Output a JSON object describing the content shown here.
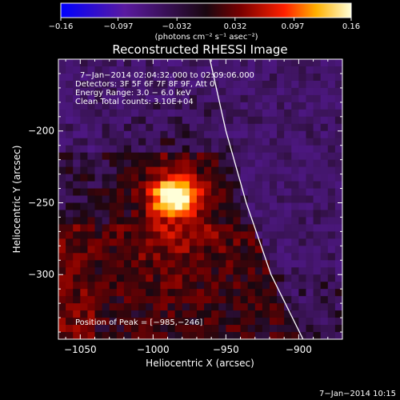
{
  "colorbar": {
    "ticks": [
      "−0.16",
      "−0.097",
      "−0.032",
      "0.032",
      "0.097",
      "0.16"
    ],
    "tick_values": [
      -0.16,
      -0.097,
      -0.032,
      0.032,
      0.097,
      0.16
    ],
    "unit_label": "(photons cm⁻² s⁻¹ asec⁻²)",
    "range": [
      -0.16,
      0.16
    ]
  },
  "header": {
    "title": "Reconstructed RHESSI Image"
  },
  "info": {
    "line1": "7−Jan−2014 02:04:32.000 to 02:09:06.000",
    "line2": "Detectors: 3F 5F 6F 7F 8F 9F, Att 0",
    "line3": "Energy Range: 3.0 − 6.0 keV",
    "line4": "Clean    Total counts: 3.10E+04",
    "peak": "Position of Peak = [−985,−246]"
  },
  "footer": {
    "timestamp": "7−Jan−2014 10:15"
  },
  "chart_data": {
    "type": "heatmap",
    "title": "Reconstructed RHESSI Image",
    "xlabel": "Heliocentric X (arcsec)",
    "ylabel": "Heliocentric Y (arcsec)",
    "xlim": [
      -1065,
      -870
    ],
    "ylim": [
      -345,
      -150
    ],
    "x_ticks": [
      -1050,
      -1000,
      -950,
      -900
    ],
    "x_tick_labels": [
      "−1050",
      "−1000",
      "−950",
      "−900"
    ],
    "y_ticks": [
      -200,
      -250,
      -300
    ],
    "y_tick_labels": [
      "−200",
      "−250",
      "−300"
    ],
    "peak": [
      -985,
      -246
    ],
    "limb": [
      [
        -961,
        -150
      ],
      [
        -950,
        -200
      ],
      [
        -936,
        -250
      ],
      [
        -919,
        -300
      ],
      [
        -897,
        -345
      ]
    ],
    "colors": {
      "background": "#000000",
      "limb": "#ffffff",
      "text": "#ffffff"
    }
  }
}
